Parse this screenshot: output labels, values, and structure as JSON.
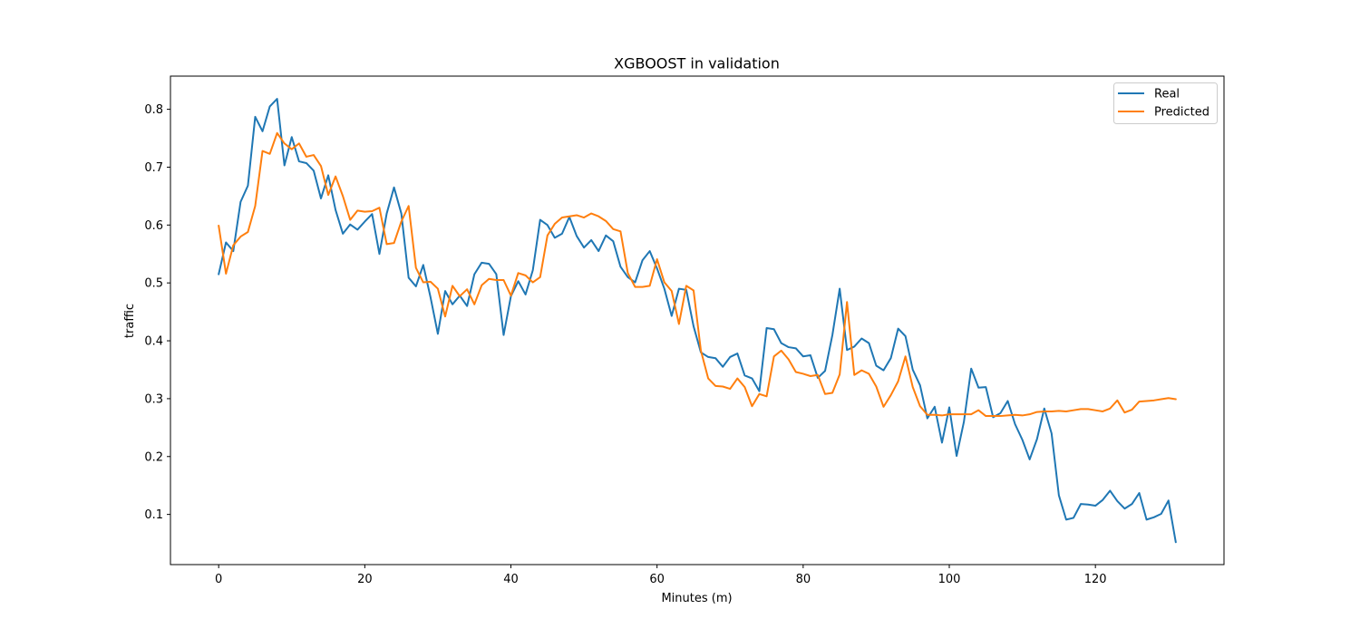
{
  "chart_data": {
    "type": "line",
    "title": "XGBOOST in validation",
    "xlabel": "Minutes (m)",
    "ylabel": "traffic",
    "xlim": [
      -6.6,
      137.6
    ],
    "ylim": [
      0.0133,
      0.8573
    ],
    "xticks": [
      0,
      20,
      40,
      60,
      80,
      100,
      120
    ],
    "yticks": [
      0.1,
      0.2,
      0.3,
      0.4,
      0.5,
      0.6,
      0.7,
      0.8
    ],
    "xtick_labels": [
      "0",
      "20",
      "40",
      "60",
      "80",
      "100",
      "120"
    ],
    "ytick_labels": [
      "0.1",
      "0.2",
      "0.3",
      "0.4",
      "0.5",
      "0.6",
      "0.7",
      "0.8"
    ],
    "grid": false,
    "legend": "top-right",
    "series": [
      {
        "name": "Real",
        "color": "#1f77b4",
        "values": [
          0.515,
          0.57,
          0.555,
          0.64,
          0.668,
          0.787,
          0.762,
          0.805,
          0.818,
          0.703,
          0.752,
          0.71,
          0.707,
          0.694,
          0.646,
          0.686,
          0.626,
          0.585,
          0.601,
          0.592,
          0.606,
          0.619,
          0.55,
          0.62,
          0.665,
          0.62,
          0.509,
          0.494,
          0.531,
          0.475,
          0.412,
          0.486,
          0.463,
          0.478,
          0.46,
          0.515,
          0.535,
          0.533,
          0.515,
          0.41,
          0.477,
          0.503,
          0.48,
          0.522,
          0.609,
          0.6,
          0.578,
          0.585,
          0.614,
          0.581,
          0.561,
          0.574,
          0.555,
          0.582,
          0.572,
          0.528,
          0.51,
          0.501,
          0.539,
          0.555,
          0.525,
          0.49,
          0.443,
          0.49,
          0.488,
          0.425,
          0.38,
          0.372,
          0.37,
          0.355,
          0.372,
          0.378,
          0.34,
          0.335,
          0.313,
          0.422,
          0.42,
          0.396,
          0.389,
          0.387,
          0.373,
          0.375,
          0.336,
          0.348,
          0.41,
          0.49,
          0.384,
          0.39,
          0.404,
          0.396,
          0.357,
          0.349,
          0.37,
          0.421,
          0.408,
          0.35,
          0.323,
          0.266,
          0.286,
          0.224,
          0.285,
          0.201,
          0.26,
          0.352,
          0.319,
          0.32,
          0.268,
          0.275,
          0.296,
          0.256,
          0.229,
          0.195,
          0.23,
          0.283,
          0.24,
          0.133,
          0.091,
          0.094,
          0.118,
          0.117,
          0.115,
          0.125,
          0.141,
          0.123,
          0.11,
          0.118,
          0.137,
          0.091,
          0.095,
          0.101,
          0.124,
          0.052
        ]
      },
      {
        "name": "Predicted",
        "color": "#ff7f0e",
        "values": [
          0.599,
          0.516,
          0.565,
          0.58,
          0.588,
          0.633,
          0.728,
          0.723,
          0.759,
          0.741,
          0.731,
          0.741,
          0.718,
          0.721,
          0.702,
          0.652,
          0.684,
          0.65,
          0.609,
          0.625,
          0.623,
          0.624,
          0.63,
          0.567,
          0.569,
          0.606,
          0.633,
          0.526,
          0.501,
          0.502,
          0.49,
          0.442,
          0.495,
          0.477,
          0.489,
          0.463,
          0.496,
          0.507,
          0.505,
          0.505,
          0.478,
          0.517,
          0.513,
          0.501,
          0.51,
          0.582,
          0.602,
          0.613,
          0.615,
          0.617,
          0.613,
          0.62,
          0.615,
          0.607,
          0.593,
          0.589,
          0.517,
          0.493,
          0.493,
          0.495,
          0.541,
          0.501,
          0.486,
          0.429,
          0.495,
          0.487,
          0.383,
          0.335,
          0.322,
          0.321,
          0.317,
          0.335,
          0.32,
          0.287,
          0.308,
          0.304,
          0.373,
          0.383,
          0.368,
          0.346,
          0.343,
          0.339,
          0.341,
          0.308,
          0.31,
          0.342,
          0.467,
          0.341,
          0.349,
          0.343,
          0.321,
          0.286,
          0.306,
          0.33,
          0.373,
          0.32,
          0.287,
          0.272,
          0.272,
          0.271,
          0.273,
          0.273,
          0.273,
          0.273,
          0.28,
          0.27,
          0.27,
          0.27,
          0.271,
          0.272,
          0.271,
          0.273,
          0.277,
          0.278,
          0.278,
          0.279,
          0.278,
          0.28,
          0.282,
          0.282,
          0.28,
          0.278,
          0.283,
          0.297,
          0.276,
          0.281,
          0.295,
          0.296,
          0.297,
          0.299,
          0.301,
          0.299
        ]
      }
    ]
  }
}
